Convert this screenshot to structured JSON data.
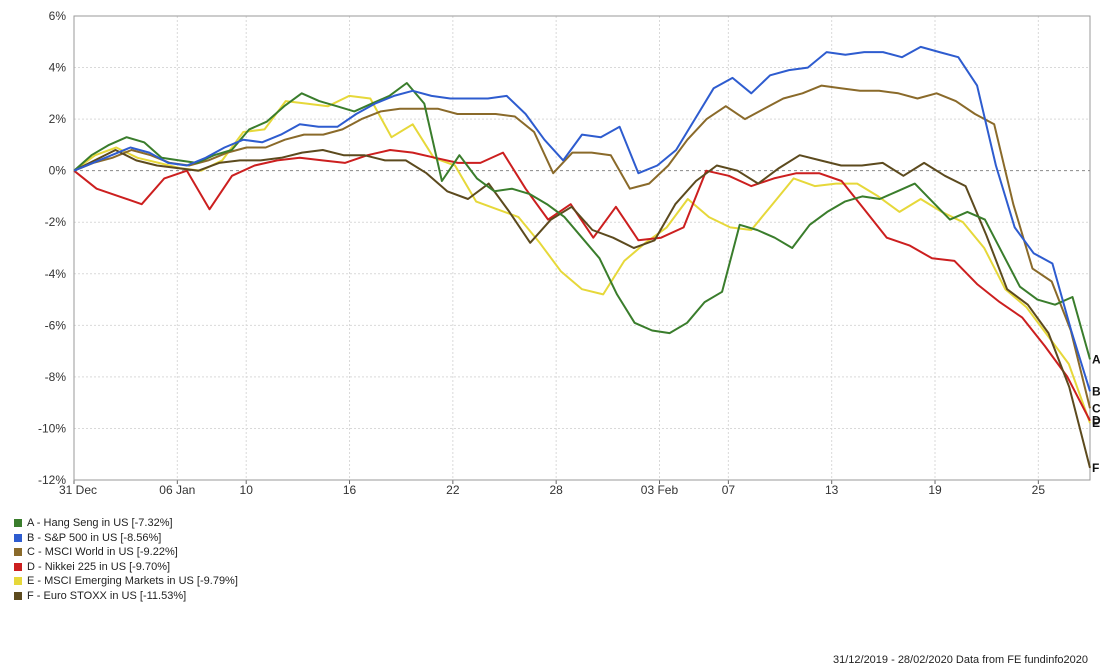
{
  "chart_data": {
    "type": "line",
    "y_tick_labels": [
      "6%",
      "4%",
      "2%",
      "0%",
      "-2%",
      "-4%",
      "-6%",
      "-8%",
      "-10%",
      "-12%"
    ],
    "y_ticks": [
      6,
      4,
      2,
      0,
      -2,
      -4,
      -6,
      -8,
      -10,
      -12
    ],
    "ylim": [
      -12,
      6
    ],
    "x_tick_labels": [
      "31 Dec",
      "06 Jan",
      "10",
      "16",
      "22",
      "28",
      "03 Feb",
      "07",
      "13",
      "19",
      "25"
    ],
    "x_tick_dates": [
      "2019-12-31",
      "2020-01-06",
      "2020-01-10",
      "2020-01-16",
      "2020-01-22",
      "2020-01-28",
      "2020-02-03",
      "2020-02-07",
      "2020-02-13",
      "2020-02-19",
      "2020-02-25"
    ],
    "x_dates": [
      "2019-12-31",
      "2020-01-02",
      "2020-01-03",
      "2020-01-04",
      "2020-01-05",
      "2020-01-06",
      "2020-01-07",
      "2020-01-08",
      "2020-01-09",
      "2020-01-10",
      "2020-01-11",
      "2020-01-12",
      "2020-01-13",
      "2020-01-14",
      "2020-01-15",
      "2020-01-16",
      "2020-01-17",
      "2020-01-18",
      "2020-01-19",
      "2020-01-20",
      "2020-01-21",
      "2020-01-22",
      "2020-01-23",
      "2020-01-24",
      "2020-01-25",
      "2020-01-26",
      "2020-01-27",
      "2020-01-28",
      "2020-01-29",
      "2020-01-30",
      "2020-01-31",
      "2020-02-01",
      "2020-02-02",
      "2020-02-03",
      "2020-02-04",
      "2020-02-05",
      "2020-02-06",
      "2020-02-07",
      "2020-02-08",
      "2020-02-09",
      "2020-02-10",
      "2020-02-11",
      "2020-02-12",
      "2020-02-13",
      "2020-02-14",
      "2020-02-15",
      "2020-02-16",
      "2020-02-17",
      "2020-02-18",
      "2020-02-19",
      "2020-02-20",
      "2020-02-21",
      "2020-02-22",
      "2020-02-23",
      "2020-02-24",
      "2020-02-25",
      "2020-02-26",
      "2020-02-27",
      "2020-02-28"
    ],
    "series": [
      {
        "name": "A - Hang Seng in US [-7.32%]",
        "end_label": "A",
        "color": "#3a7d2c",
        "values": [
          0,
          0.6,
          1.0,
          1.3,
          1.1,
          0.5,
          0.4,
          0.3,
          0.6,
          0.8,
          1.6,
          1.9,
          2.5,
          3.0,
          2.7,
          2.5,
          2.3,
          2.6,
          2.9,
          3.4,
          2.6,
          -0.4,
          0.6,
          -0.3,
          -0.8,
          -0.7,
          -0.9,
          -1.3,
          -1.8,
          -2.6,
          -3.4,
          -4.8,
          -5.9,
          -6.2,
          -6.3,
          -5.9,
          -5.1,
          -4.7,
          -2.1,
          -2.3,
          -2.6,
          -3.0,
          -2.1,
          -1.6,
          -1.2,
          -1.0,
          -1.1,
          -0.8,
          -0.5,
          -1.2,
          -1.9,
          -1.6,
          -1.9,
          -3.2,
          -4.5,
          -5.0,
          -5.2,
          -4.9,
          -7.32
        ]
      },
      {
        "name": "B - S&P 500 in US [-8.56%]",
        "end_label": "B",
        "color": "#2e5ccf",
        "values": [
          0,
          0.3,
          0.6,
          0.9,
          0.7,
          0.3,
          0.2,
          0.5,
          0.9,
          1.2,
          1.1,
          1.4,
          1.8,
          1.7,
          1.7,
          2.2,
          2.6,
          2.9,
          3.1,
          2.9,
          2.8,
          2.8,
          2.8,
          2.9,
          2.2,
          1.2,
          0.4,
          1.4,
          1.3,
          1.7,
          -0.1,
          0.2,
          0.8,
          2.0,
          3.2,
          3.6,
          3.0,
          3.7,
          3.9,
          4.0,
          4.6,
          4.5,
          4.6,
          4.6,
          4.4,
          4.8,
          4.6,
          4.4,
          3.3,
          0.2,
          -2.2,
          -3.2,
          -3.6,
          -6.2,
          -8.56
        ]
      },
      {
        "name": "C - MSCI World in US [-9.22%]",
        "end_label": "C",
        "color": "#8a6a2a",
        "values": [
          0,
          0.3,
          0.5,
          0.8,
          0.6,
          0.3,
          0.2,
          0.4,
          0.7,
          0.9,
          0.9,
          1.2,
          1.4,
          1.4,
          1.6,
          2.0,
          2.3,
          2.4,
          2.4,
          2.4,
          2.2,
          2.2,
          2.2,
          2.1,
          1.5,
          -0.1,
          0.7,
          0.7,
          0.6,
          -0.7,
          -0.5,
          0.2,
          1.2,
          2.0,
          2.5,
          2.0,
          2.4,
          2.8,
          3.0,
          3.3,
          3.2,
          3.1,
          3.1,
          3.0,
          2.8,
          3.0,
          2.7,
          2.2,
          1.8,
          -1.3,
          -3.8,
          -4.3,
          -6.2,
          -9.22
        ]
      },
      {
        "name": "D - Nikkei 225 in US [-9.70%]",
        "end_label": "D",
        "color": "#cc1f1f",
        "values": [
          0,
          -0.7,
          -1.0,
          -1.3,
          -0.3,
          0.0,
          -1.5,
          -0.2,
          0.2,
          0.4,
          0.5,
          0.4,
          0.3,
          0.6,
          0.8,
          0.7,
          0.5,
          0.3,
          0.3,
          0.7,
          -0.7,
          -1.9,
          -1.3,
          -2.6,
          -1.4,
          -2.7,
          -2.6,
          -2.2,
          0.0,
          -0.2,
          -0.6,
          -0.3,
          -0.1,
          -0.1,
          -0.4,
          -1.5,
          -2.6,
          -2.9,
          -3.4,
          -3.5,
          -4.4,
          -5.1,
          -5.7,
          -6.8,
          -8.0,
          -9.7
        ]
      },
      {
        "name": "E - MSCI Emerging Markets in US [-9.79%]",
        "end_label": "E",
        "color": "#e6d83a",
        "values": [
          0,
          0.6,
          0.9,
          0.5,
          0.3,
          0.1,
          0.0,
          0.4,
          1.5,
          1.6,
          2.7,
          2.6,
          2.5,
          2.9,
          2.8,
          1.3,
          1.8,
          0.5,
          0.2,
          -1.2,
          -1.5,
          -1.8,
          -2.8,
          -3.9,
          -4.6,
          -4.8,
          -3.5,
          -2.8,
          -2.2,
          -1.1,
          -1.8,
          -2.2,
          -2.3,
          -1.3,
          -0.3,
          -0.6,
          -0.5,
          -0.5,
          -1.0,
          -1.6,
          -1.1,
          -1.6,
          -2.0,
          -3.0,
          -4.6,
          -5.3,
          -6.4,
          -7.5,
          -9.79
        ]
      },
      {
        "name": "F - Euro STOXX in US [-11.53%]",
        "end_label": "F",
        "color": "#5c4a1e",
        "values": [
          0,
          0.4,
          0.8,
          0.4,
          0.2,
          0.1,
          0.0,
          0.3,
          0.4,
          0.4,
          0.5,
          0.7,
          0.8,
          0.6,
          0.6,
          0.4,
          0.4,
          -0.1,
          -0.8,
          -1.1,
          -0.5,
          -1.6,
          -2.8,
          -1.9,
          -1.4,
          -2.3,
          -2.6,
          -3.0,
          -2.7,
          -1.3,
          -0.4,
          0.2,
          0.0,
          -0.5,
          0.1,
          0.6,
          0.4,
          0.2,
          0.2,
          0.3,
          -0.2,
          0.3,
          -0.2,
          -0.6,
          -2.5,
          -4.6,
          -5.2,
          -6.3,
          -8.4,
          -11.53
        ]
      }
    ]
  },
  "legend": [
    {
      "label": "A - Hang Seng in US [-7.32%]",
      "color": "#3a7d2c"
    },
    {
      "label": "B - S&P 500 in US [-8.56%]",
      "color": "#2e5ccf"
    },
    {
      "label": "C - MSCI World in US [-9.22%]",
      "color": "#8a6a2a"
    },
    {
      "label": "D - Nikkei 225 in US [-9.70%]",
      "color": "#cc1f1f"
    },
    {
      "label": "E - MSCI Emerging Markets in US [-9.79%]",
      "color": "#e6d83a"
    },
    {
      "label": "F - Euro STOXX in US [-11.53%]",
      "color": "#5c4a1e"
    }
  ],
  "footer": "31/12/2019 - 28/02/2020 Data from FE fundinfo2020"
}
